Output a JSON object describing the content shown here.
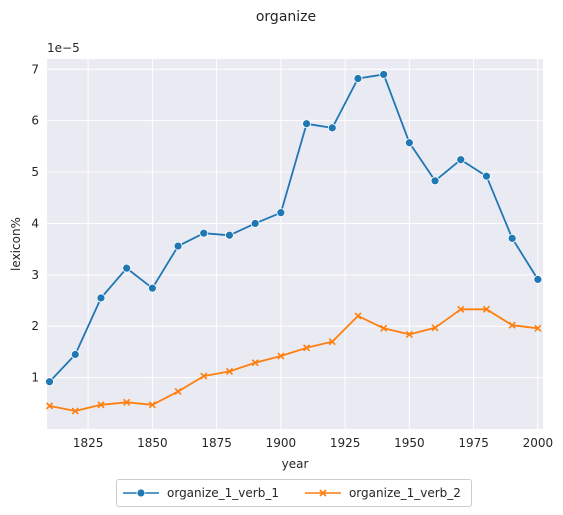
{
  "chart_data": {
    "type": "line",
    "title": "organize",
    "xlabel": "year",
    "ylabel": "lexicon%",
    "y_multiplier_label": "1e−5",
    "xlim": [
      1809,
      2002
    ],
    "ylim": [
      0.0,
      7.2
    ],
    "x_ticks": [
      1825,
      1850,
      1875,
      1900,
      1925,
      1950,
      1975,
      2000
    ],
    "y_ticks": [
      1,
      2,
      3,
      4,
      5,
      6,
      7
    ],
    "grid": true,
    "legend_placement": "bottom-center",
    "x": [
      1810,
      1820,
      1830,
      1840,
      1850,
      1860,
      1870,
      1880,
      1890,
      1900,
      1910,
      1920,
      1930,
      1940,
      1950,
      1960,
      1970,
      1980,
      1990,
      2000
    ],
    "series": [
      {
        "name": "organize_1_verb_1",
        "color": "#1f77b4",
        "marker": "circle",
        "values": [
          0.92,
          1.45,
          2.55,
          3.13,
          2.74,
          3.56,
          3.81,
          3.77,
          4.0,
          4.21,
          5.94,
          5.86,
          6.82,
          6.9,
          5.57,
          4.83,
          5.24,
          4.92,
          3.71,
          2.91
        ]
      },
      {
        "name": "organize_1_verb_2",
        "color": "#ff7f0e",
        "marker": "x",
        "values": [
          0.45,
          0.35,
          0.47,
          0.52,
          0.47,
          0.73,
          1.03,
          1.12,
          1.29,
          1.42,
          1.58,
          1.7,
          2.2,
          1.96,
          1.84,
          1.97,
          2.33,
          2.33,
          2.02,
          1.96
        ]
      }
    ]
  }
}
